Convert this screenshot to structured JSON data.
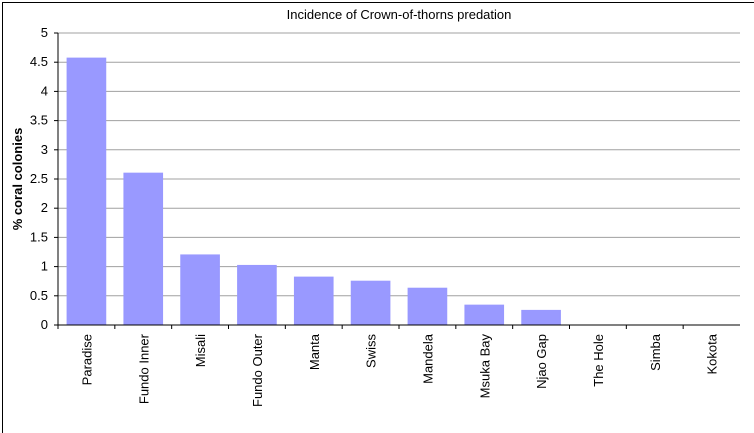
{
  "chart_data": {
    "type": "bar",
    "title": "Incidence of Crown-of-thorns predation",
    "y_label": "% coral colonies",
    "categories": [
      "Paradise",
      "Fundo Inner",
      "Misali",
      "Fundo Outer",
      "Manta",
      "Swiss",
      "Mandela",
      "Msuka Bay",
      "Njao Gap",
      "The Hole",
      "Simba",
      "Kokota"
    ],
    "values": [
      4.57,
      2.6,
      1.2,
      1.02,
      0.82,
      0.75,
      0.63,
      0.34,
      0.25,
      0,
      0,
      0
    ],
    "color": "#9999ff",
    "ylim": [
      0,
      5
    ],
    "yticks": [
      0,
      0.5,
      1,
      1.5,
      2,
      2.5,
      3,
      3.5,
      4,
      4.5,
      5
    ],
    "grid": true
  }
}
